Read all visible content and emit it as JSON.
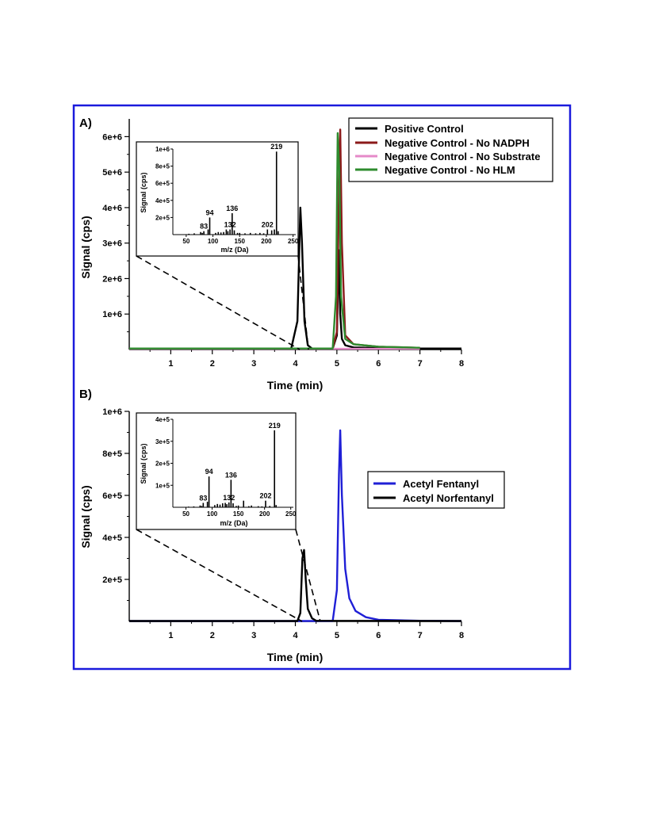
{
  "colors": {
    "frame": "#1a1adc",
    "positive_control": "#000000",
    "no_nadph": "#8b1a1a",
    "no_substrate": "#e58ac8",
    "no_hlm": "#2e8b2e",
    "acetyl_fentanyl": "#1f1fd6",
    "acetyl_norfentanyl": "#000000"
  },
  "chart_data": [
    {
      "panel": "A)",
      "type": "line",
      "xlabel": "Time (min)",
      "ylabel": "Signal (cps)",
      "xlim": [
        0,
        8
      ],
      "ylim": [
        0,
        6500000
      ],
      "x_ticks": [
        "1",
        "2",
        "3",
        "4",
        "5",
        "6",
        "7",
        "8"
      ],
      "y_ticks": [
        "1e+6",
        "2e+6",
        "3e+6",
        "4e+6",
        "5e+6",
        "6e+6"
      ],
      "legend_position": "top-right",
      "series": [
        {
          "name": "Positive Control",
          "color": "#000000",
          "x": [
            0.0,
            3.9,
            4.05,
            4.12,
            4.16,
            4.22,
            4.3,
            4.4,
            4.9,
            5.0,
            5.05,
            5.08,
            5.12,
            5.2,
            5.4,
            6.0,
            7.0,
            8.0
          ],
          "y": [
            30000,
            30000,
            800000,
            4000000,
            3000000,
            800000,
            120000,
            30000,
            30000,
            400000,
            2800000,
            1000000,
            300000,
            120000,
            60000,
            40000,
            30000,
            30000
          ]
        },
        {
          "name": "Negative Control - No NADPH",
          "color": "#8b1a1a",
          "x": [
            0.0,
            4.9,
            5.0,
            5.05,
            5.08,
            5.12,
            5.2,
            5.4,
            6.0,
            7.0
          ],
          "y": [
            30000,
            30000,
            500000,
            4500000,
            6200000,
            3000000,
            400000,
            150000,
            80000,
            50000
          ]
        },
        {
          "name": "Negative Control - No Substrate",
          "color": "#e58ac8",
          "x": [
            0.0,
            7.0
          ],
          "y": [
            20000,
            20000
          ]
        },
        {
          "name": "Negative Control - No HLM",
          "color": "#2e8b2e",
          "x": [
            0.0,
            4.9,
            4.98,
            5.02,
            5.06,
            5.1,
            5.2,
            5.4,
            6.0,
            7.0
          ],
          "y": [
            30000,
            30000,
            1500000,
            6100000,
            5000000,
            1500000,
            300000,
            150000,
            80000,
            50000
          ]
        }
      ],
      "inset": {
        "type": "bar",
        "xlabel": "m/z (Da)",
        "ylabel": "Signal (cps)",
        "xlim": [
          25,
          255
        ],
        "ylim": [
          0,
          1000000
        ],
        "x_ticks": [
          "50",
          "100",
          "150",
          "200",
          "250"
        ],
        "y_ticks": [
          "2e+5",
          "4e+5",
          "6e+5",
          "8e+5",
          "1e+6"
        ],
        "x": [
          55,
          65,
          77,
          80,
          83,
          91,
          94,
          105,
          110,
          115,
          120,
          125,
          128,
          132,
          136,
          140,
          146,
          150,
          160,
          170,
          180,
          188,
          195,
          202,
          210,
          215,
          219,
          222
        ],
        "y": [
          10000,
          15000,
          30000,
          20000,
          40000,
          60000,
          200000,
          20000,
          30000,
          25000,
          30000,
          60000,
          40000,
          60000,
          250000,
          50000,
          20000,
          20000,
          15000,
          20000,
          15000,
          20000,
          15000,
          60000,
          50000,
          60000,
          970000,
          40000
        ],
        "peak_labels": [
          {
            "mz": 83,
            "text": "83"
          },
          {
            "mz": 94,
            "text": "94"
          },
          {
            "mz": 132,
            "text": "132"
          },
          {
            "mz": 136,
            "text": "136"
          },
          {
            "mz": 202,
            "text": "202"
          },
          {
            "mz": 219,
            "text": "219"
          }
        ]
      }
    },
    {
      "panel": "B)",
      "type": "line",
      "xlabel": "Time (min)",
      "ylabel": "Signal (cps)",
      "xlim": [
        0,
        8
      ],
      "ylim": [
        0,
        1000000
      ],
      "x_ticks": [
        "1",
        "2",
        "3",
        "4",
        "5",
        "6",
        "7",
        "8"
      ],
      "y_ticks": [
        "2e+5",
        "4e+5",
        "6e+5",
        "8e+5",
        "1e+6"
      ],
      "legend_position": "right",
      "series": [
        {
          "name": "Acetyl Fentanyl",
          "color": "#1f1fd6",
          "x": [
            0.0,
            4.9,
            5.0,
            5.05,
            5.08,
            5.12,
            5.2,
            5.3,
            5.45,
            5.7,
            6.0,
            7.0,
            8.0
          ],
          "y": [
            2000,
            2000,
            150000,
            700000,
            910000,
            600000,
            250000,
            110000,
            50000,
            20000,
            8000,
            3000,
            2000
          ]
        },
        {
          "name": "Acetyl Norfentanyl",
          "color": "#000000",
          "x": [
            0.0,
            4.05,
            4.12,
            4.17,
            4.21,
            4.25,
            4.3,
            4.4,
            4.5,
            8.0
          ],
          "y": [
            2000,
            2000,
            40000,
            300000,
            340000,
            200000,
            60000,
            15000,
            3000,
            2000
          ]
        }
      ],
      "inset": {
        "type": "bar",
        "xlabel": "m/z (Da)",
        "ylabel": "Signal (cps)",
        "xlim": [
          25,
          255
        ],
        "ylim": [
          0,
          400000
        ],
        "x_ticks": [
          "50",
          "100",
          "150",
          "200",
          "250"
        ],
        "y_ticks": [
          "1e+5",
          "2e+5",
          "3e+5",
          "4e+5"
        ],
        "x": [
          55,
          65,
          77,
          80,
          83,
          91,
          94,
          105,
          110,
          115,
          120,
          125,
          128,
          132,
          136,
          140,
          146,
          150,
          160,
          170,
          175,
          188,
          195,
          202,
          210,
          219,
          222
        ],
        "y": [
          3000,
          4000,
          8000,
          6000,
          20000,
          25000,
          140000,
          10000,
          15000,
          12000,
          18000,
          20000,
          14000,
          22000,
          125000,
          18000,
          6000,
          8000,
          30000,
          5000,
          8000,
          5000,
          4000,
          30000,
          6000,
          350000,
          10000
        ],
        "peak_labels": [
          {
            "mz": 83,
            "text": "83"
          },
          {
            "mz": 94,
            "text": "94"
          },
          {
            "mz": 132,
            "text": "132"
          },
          {
            "mz": 136,
            "text": "136"
          },
          {
            "mz": 202,
            "text": "202"
          },
          {
            "mz": 219,
            "text": "219"
          }
        ]
      }
    }
  ]
}
